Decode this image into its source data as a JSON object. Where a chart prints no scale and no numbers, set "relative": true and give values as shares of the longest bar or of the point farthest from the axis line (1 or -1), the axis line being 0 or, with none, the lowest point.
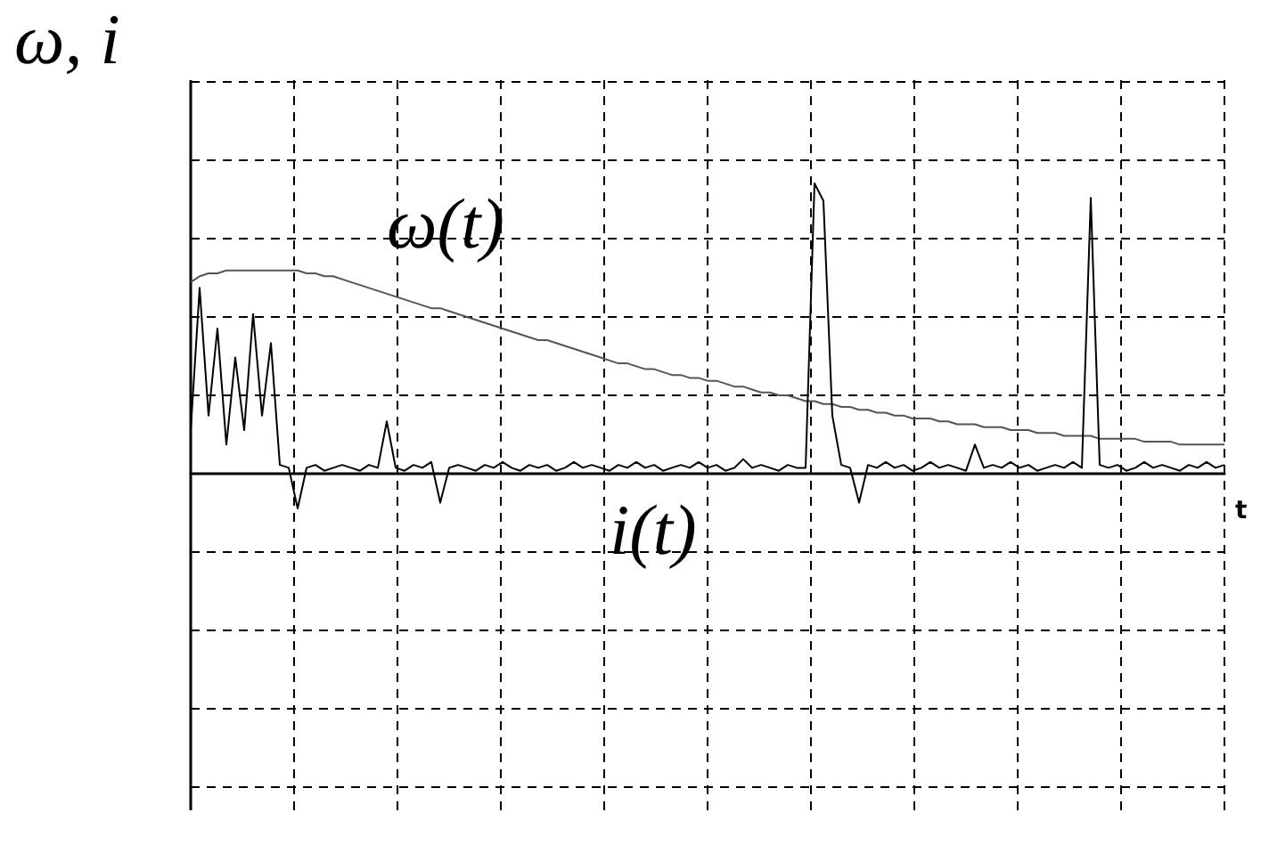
{
  "chart_data": {
    "type": "line",
    "relative": true,
    "xlabel": "t",
    "ylabel": "ω, i",
    "grid": true,
    "legend": false,
    "line_style": "solid",
    "categories": [
      null,
      null,
      null,
      null,
      null,
      null,
      null,
      null,
      null,
      null,
      null,
      null,
      null,
      null,
      null,
      null,
      null,
      null,
      null,
      null,
      null,
      null,
      null,
      null,
      null,
      null,
      null,
      null,
      null,
      null,
      null,
      null,
      null,
      null,
      null,
      null,
      null,
      null,
      null,
      null,
      null,
      null,
      null,
      null,
      null,
      null,
      null,
      null,
      null,
      null,
      null,
      null,
      null,
      null,
      null,
      null,
      null,
      null,
      null,
      null,
      null,
      null,
      null,
      null,
      null,
      null,
      null,
      null,
      null,
      null,
      null,
      null,
      null,
      null,
      null,
      null,
      null,
      null,
      null,
      null,
      null,
      null,
      null,
      null,
      null,
      null,
      null,
      null,
      null,
      null,
      null,
      null,
      null,
      null,
      null,
      null,
      null,
      null,
      null,
      null,
      null,
      null,
      null,
      null,
      null,
      null,
      null,
      null,
      null,
      null,
      null,
      null,
      null,
      null,
      null,
      null,
      null
    ],
    "series": [
      {
        "name": "ω(t)",
        "color": "#555555",
        "values": [
          0.66,
          0.68,
          0.69,
          0.69,
          0.7,
          0.7,
          0.7,
          0.7,
          0.7,
          0.7,
          0.7,
          0.7,
          0.7,
          0.69,
          0.69,
          0.68,
          0.68,
          0.67,
          0.66,
          0.65,
          0.64,
          0.63,
          0.62,
          0.61,
          0.6,
          0.59,
          0.58,
          0.57,
          0.57,
          0.56,
          0.55,
          0.54,
          0.53,
          0.52,
          0.51,
          0.5,
          0.49,
          0.48,
          0.47,
          0.46,
          0.46,
          0.45,
          0.44,
          0.43,
          0.42,
          0.41,
          0.4,
          0.39,
          0.38,
          0.38,
          0.37,
          0.36,
          0.36,
          0.35,
          0.34,
          0.34,
          0.33,
          0.33,
          0.32,
          0.32,
          0.31,
          0.3,
          0.3,
          0.29,
          0.28,
          0.28,
          0.27,
          0.27,
          0.26,
          0.25,
          0.25,
          0.24,
          0.24,
          0.23,
          0.23,
          0.22,
          0.22,
          0.21,
          0.21,
          0.2,
          0.2,
          0.19,
          0.19,
          0.19,
          0.18,
          0.18,
          0.17,
          0.17,
          0.17,
          0.16,
          0.16,
          0.16,
          0.15,
          0.15,
          0.15,
          0.14,
          0.14,
          0.14,
          0.13,
          0.13,
          0.13,
          0.13,
          0.12,
          0.12,
          0.12,
          0.12,
          0.12,
          0.11,
          0.11,
          0.11,
          0.11,
          0.1,
          0.1,
          0.1,
          0.1,
          0.1,
          0.1
        ]
      },
      {
        "name": "i(t)",
        "color": "#000000",
        "values": [
          0.15,
          0.64,
          0.2,
          0.5,
          0.1,
          0.4,
          0.15,
          0.55,
          0.2,
          0.45,
          0.03,
          0.02,
          -0.12,
          0.02,
          0.03,
          0.01,
          0.02,
          0.03,
          0.02,
          0.01,
          0.03,
          0.02,
          0.18,
          0.02,
          0.01,
          0.03,
          0.02,
          0.04,
          -0.1,
          0.02,
          0.03,
          0.02,
          0.01,
          0.03,
          0.02,
          0.04,
          0.02,
          0.01,
          0.03,
          0.02,
          0.03,
          0.01,
          0.02,
          0.04,
          0.02,
          0.03,
          0.02,
          0.01,
          0.03,
          0.02,
          0.04,
          0.02,
          0.03,
          0.01,
          0.02,
          0.03,
          0.02,
          0.04,
          0.02,
          0.03,
          0.01,
          0.02,
          0.05,
          0.02,
          0.03,
          0.02,
          0.01,
          0.03,
          0.02,
          0.02,
          1.0,
          0.94,
          0.2,
          0.03,
          0.02,
          -0.1,
          0.03,
          0.02,
          0.04,
          0.02,
          0.03,
          0.01,
          0.02,
          0.04,
          0.02,
          0.03,
          0.02,
          0.01,
          0.1,
          0.02,
          0.03,
          0.02,
          0.04,
          0.02,
          0.03,
          0.01,
          0.02,
          0.03,
          0.02,
          0.04,
          0.02,
          0.95,
          0.03,
          0.02,
          0.03,
          0.01,
          0.02,
          0.04,
          0.02,
          0.03,
          0.02,
          0.01,
          0.03,
          0.02,
          0.04,
          0.02,
          0.03
        ]
      }
    ]
  }
}
